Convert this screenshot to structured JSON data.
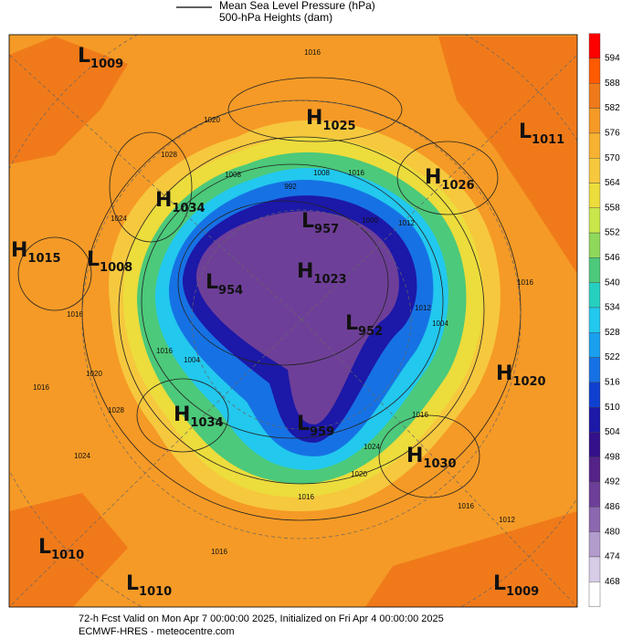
{
  "header": {
    "line1": "Mean Sea Level Pressure (hPa)",
    "line2": "500-hPa Heights (dam)"
  },
  "centers": [
    {
      "letter": "L",
      "value": "1009"
    },
    {
      "letter": "H",
      "value": "1025"
    },
    {
      "letter": "L",
      "value": "1011"
    },
    {
      "letter": "H",
      "value": "1026"
    },
    {
      "letter": "H",
      "value": "1034"
    },
    {
      "letter": "L",
      "value": "957"
    },
    {
      "letter": "H",
      "value": "1015"
    },
    {
      "letter": "L",
      "value": "1008"
    },
    {
      "letter": "L",
      "value": "954"
    },
    {
      "letter": "H",
      "value": "1023"
    },
    {
      "letter": "L",
      "value": "952"
    },
    {
      "letter": "H",
      "value": "1020"
    },
    {
      "letter": "H",
      "value": "1034"
    },
    {
      "letter": "L",
      "value": "959"
    },
    {
      "letter": "H",
      "value": "1030"
    },
    {
      "letter": "L",
      "value": "1010"
    },
    {
      "letter": "L",
      "value": "1010"
    },
    {
      "letter": "L",
      "value": "1009"
    }
  ],
  "isobar_labels": [
    "1016",
    "1020",
    "1028",
    "1024",
    "1016",
    "1016",
    "1004",
    "1008",
    "992",
    "1012",
    "1016",
    "1016",
    "1020",
    "1016",
    "1028",
    "1024",
    "1016",
    "1016",
    "1012",
    "1016",
    "1024",
    "1020",
    "1016",
    "1012",
    "1000",
    "1004",
    "1008"
  ],
  "colorbar": {
    "ticks": [
      594,
      588,
      582,
      576,
      570,
      564,
      558,
      552,
      546,
      540,
      534,
      528,
      522,
      516,
      510,
      504,
      498,
      492,
      486,
      480,
      474,
      468
    ],
    "colors": [
      "#ff0000",
      "#ff5a00",
      "#f07a1a",
      "#f59a26",
      "#f7b232",
      "#f6c83e",
      "#ecdc3c",
      "#c9e64a",
      "#8fd85a",
      "#4cc97a",
      "#26cfc0",
      "#22c8ee",
      "#1aa0ee",
      "#1672e4",
      "#1040d0",
      "#1c18a8",
      "#34108a",
      "#552388",
      "#6e3f98",
      "#8c68b0",
      "#b29cce",
      "#d8cde8",
      "#ffffff"
    ]
  },
  "footer": {
    "line1": "72-h Fcst Valid on Mon Apr  7 00:00:00 2025, Initialized on Fri Apr  4 00:00:00 2025",
    "line2": "ECMWF-HRES  - meteocentre.com"
  }
}
